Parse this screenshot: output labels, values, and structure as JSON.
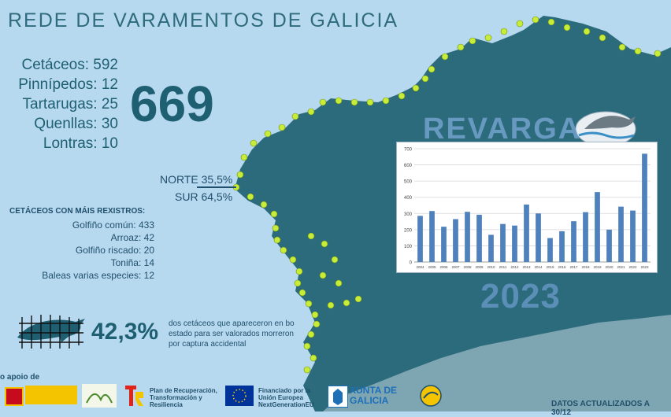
{
  "header": {
    "title": "REDE DE VARAMENTOS DE GALICIA"
  },
  "stats": [
    {
      "label": "Cetáceos:",
      "value": "592"
    },
    {
      "label": "Pinnípedos:",
      "value": "12"
    },
    {
      "label": "Tartarugas:",
      "value": "25"
    },
    {
      "label": "Quenllas:",
      "value": "30"
    },
    {
      "label": "Lontras:",
      "value": "10"
    }
  ],
  "total": "669",
  "regions": {
    "north": "NORTE 35,5%",
    "south": "SUR 64,5%"
  },
  "cetaceans": {
    "heading": "CETÁCEOS CON MÁIS REXISTROS:",
    "items": [
      {
        "label": "Golfiño común:",
        "value": "433"
      },
      {
        "label": "Arroaz:",
        "value": "42"
      },
      {
        "label": "Golfiño riscado:",
        "value": "20"
      },
      {
        "label": "Toniña:",
        "value": "14"
      },
      {
        "label": "Baleas varias especies:",
        "value": "12"
      }
    ]
  },
  "bycatch": {
    "percent": "42,3%",
    "text": "dos cetáceos que apareceron en bo estado para ser valorados morreron por captura accidental"
  },
  "year": "2023",
  "logo_text": "REVARGA",
  "footer": {
    "support": "o apoio de",
    "updated": "DATOS ACTUALIZADOS A 30/12",
    "logos": [
      {
        "name": "Plan de Recuperación, Transformación y Resiliencia"
      },
      {
        "name": "Financiado por la Unión Europea NextGenerationEU"
      },
      {
        "name": "XUNTA DE GALICIA"
      }
    ]
  },
  "chart_data": {
    "type": "bar",
    "categories": [
      "2004",
      "2005",
      "2006",
      "2007",
      "2008",
      "2009",
      "2010",
      "2011",
      "2012",
      "2013",
      "2014",
      "2015",
      "2016",
      "2017",
      "2018",
      "2019",
      "2020",
      "2021",
      "2022",
      "2023"
    ],
    "values": [
      285,
      315,
      218,
      265,
      310,
      292,
      168,
      235,
      225,
      355,
      300,
      148,
      190,
      252,
      308,
      432,
      200,
      342,
      318,
      669
    ],
    "ylim": [
      0,
      700
    ],
    "yticks": [
      0,
      100,
      200,
      300,
      400,
      500,
      600,
      700
    ],
    "grid": true,
    "colors": {
      "bar": "#4f81bd"
    }
  },
  "colors": {
    "sea": "#b7d9ef",
    "land": "#2b6b7c",
    "dots": "#c8ec3a",
    "accent": "#1f5f72"
  }
}
